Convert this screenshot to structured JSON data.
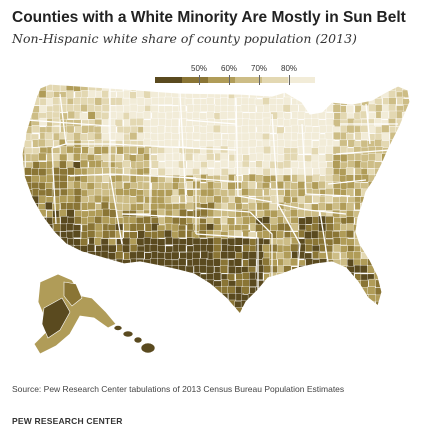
{
  "header": {
    "title": "Counties with a White Minority Are Mostly in Sun Belt",
    "subtitle": "Non-Hispanic white share of county population (2013)"
  },
  "legend": {
    "labels": [
      "50%",
      "60%",
      "70%",
      "80%"
    ],
    "colors": [
      "#5a4a1f",
      "#8a7535",
      "#b09c58",
      "#cdbd86",
      "#e3d8b2",
      "#f2ecd8"
    ]
  },
  "map": {
    "region": "United States counties",
    "colors": {
      "outline": "#ffffff",
      "white_minority": "#5a4a1f",
      "low": "#8a7535",
      "mid": "#b09c58",
      "high": "#cdbd86",
      "very_high": "#e3d8b2",
      "highest": "#f2ecd8"
    }
  },
  "footer": {
    "source": "Source: Pew Research Center tabulations of 2013 Census Bureau Population Estimates",
    "brand": "PEW RESEARCH CENTER"
  }
}
